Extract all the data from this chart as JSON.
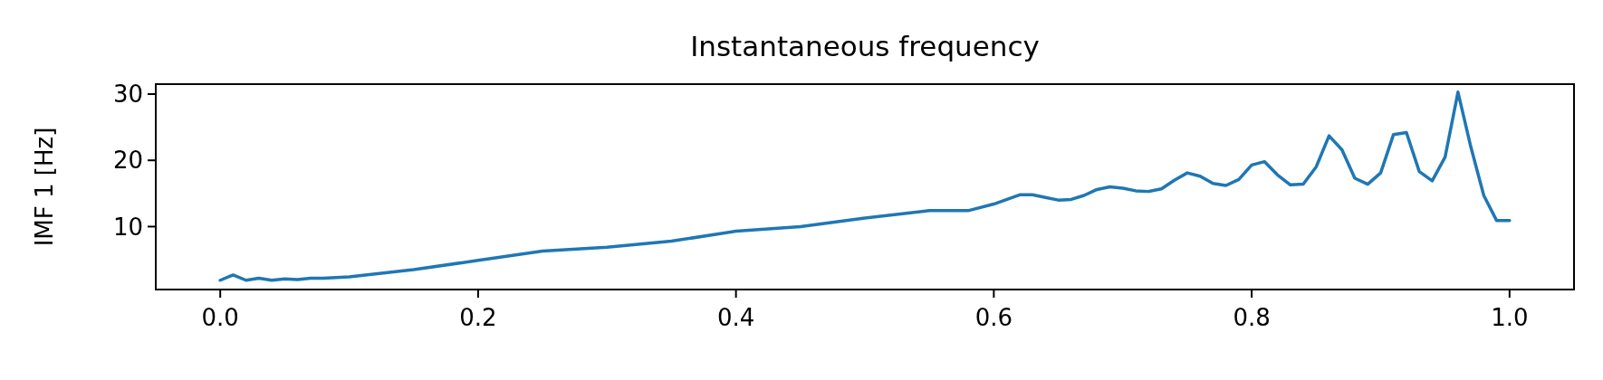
{
  "chart_data": {
    "type": "line",
    "title": "Instantaneous frequency",
    "ylabel": "IMF 1 [Hz]",
    "xlim": [
      -0.05,
      1.05
    ],
    "xticks": [
      {
        "value": 0,
        "label": "0.0"
      },
      0.2,
      0.4,
      0.6,
      0.8,
      {
        "value": 1,
        "label": "1.0"
      }
    ],
    "ylim": [
      0.5,
      31.5
    ],
    "yticks": [
      10,
      20,
      30
    ],
    "grid": false,
    "marker": "none",
    "line_style": "solid",
    "series": [
      {
        "color": "#1f77b4",
        "x": [
          0,
          0.01,
          0.02,
          0.03,
          0.04,
          0.05,
          0.06,
          0.07,
          0.08,
          0.09,
          0.1,
          0.15,
          0.2,
          0.25,
          0.3,
          0.35,
          0.4,
          0.45,
          0.5,
          0.55,
          0.58,
          0.6,
          0.62,
          0.63,
          0.64,
          0.65,
          0.66,
          0.67,
          0.68,
          0.69,
          0.7,
          0.71,
          0.72,
          0.73,
          0.74,
          0.75,
          0.76,
          0.77,
          0.78,
          0.79,
          0.8,
          0.81,
          0.82,
          0.83,
          0.84,
          0.85,
          0.86,
          0.87,
          0.88,
          0.89,
          0.9,
          0.91,
          0.92,
          0.93,
          0.94,
          0.95,
          0.96,
          0.97,
          0.98,
          0.99,
          1
        ],
        "values": [
          1.9,
          2.7,
          1.9,
          2.2,
          1.9,
          2.1,
          2.0,
          2.2,
          2.2,
          2.3,
          2.4,
          3.5,
          4.9,
          6.3,
          6.9,
          7.8,
          9.3,
          10.0,
          11.3,
          12.4,
          12.4,
          13.4,
          14.8,
          14.8,
          14.4,
          14.0,
          14.1,
          14.7,
          15.6,
          16.0,
          15.8,
          15.4,
          15.3,
          15.7,
          17.0,
          18.1,
          17.6,
          16.5,
          16.2,
          17.1,
          19.3,
          19.8,
          17.8,
          16.3,
          16.4,
          19.0,
          23.7,
          21.6,
          17.3,
          16.4,
          18.1,
          23.9,
          24.2,
          18.3,
          16.9,
          20.5,
          30.3,
          22.0,
          14.7,
          10.9,
          10.9
        ]
      }
    ]
  }
}
